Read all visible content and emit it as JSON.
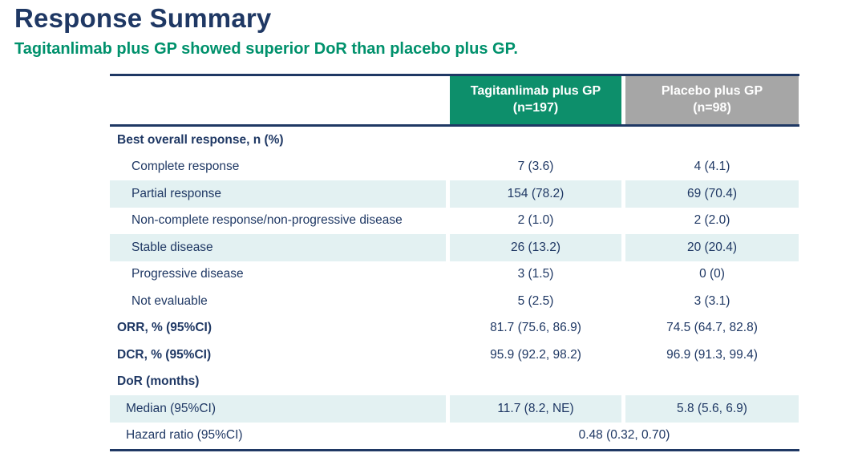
{
  "page": {
    "title": "Response Summary",
    "subtitle": "Tagitanlimab plus GP showed superior DoR than placebo plus GP."
  },
  "colors": {
    "title_navy": "#1F3864",
    "subtitle_green": "#00916C",
    "header_green_bg": "#0D8F6B",
    "header_gray_bg": "#A6A6A6",
    "row_shade": "#E3F1F2",
    "body_text": "#1F3864"
  },
  "table": {
    "columns": [
      {
        "label": "Tagitanlimab plus GP",
        "n": "(n=197)"
      },
      {
        "label": "Placebo plus GP",
        "n": "(n=98)"
      }
    ],
    "rows": [
      {
        "label": "Best overall response, n (%)",
        "c1": "",
        "c2": ""
      },
      {
        "label": "Complete response",
        "c1": "7 (3.6)",
        "c2": "4 (4.1)"
      },
      {
        "label": "Partial response",
        "c1": "154 (78.2)",
        "c2": "69 (70.4)"
      },
      {
        "label": "Non-complete response/non-progressive disease",
        "c1": "2 (1.0)",
        "c2": "2 (2.0)"
      },
      {
        "label": "Stable disease",
        "c1": "26 (13.2)",
        "c2": "20 (20.4)"
      },
      {
        "label": "Progressive disease",
        "c1": "3 (1.5)",
        "c2": "0 (0)"
      },
      {
        "label": "Not evaluable",
        "c1": "5 (2.5)",
        "c2": "3 (3.1)"
      },
      {
        "label": "ORR, % (95%CI)",
        "c1": "81.7 (75.6, 86.9)",
        "c2": "74.5 (64.7, 82.8)"
      },
      {
        "label": "DCR, % (95%CI)",
        "c1": "95.9 (92.2, 98.2)",
        "c2": "96.9 (91.3, 99.4)"
      },
      {
        "label": "DoR (months)",
        "c1": "",
        "c2": ""
      },
      {
        "label": "Median (95%CI)",
        "c1": "11.7 (8.2, NE)",
        "c2": "5.8 (5.6, 6.9)"
      },
      {
        "label": "Hazard ratio (95%CI)",
        "span": "0.48 (0.32, 0.70)"
      }
    ]
  }
}
